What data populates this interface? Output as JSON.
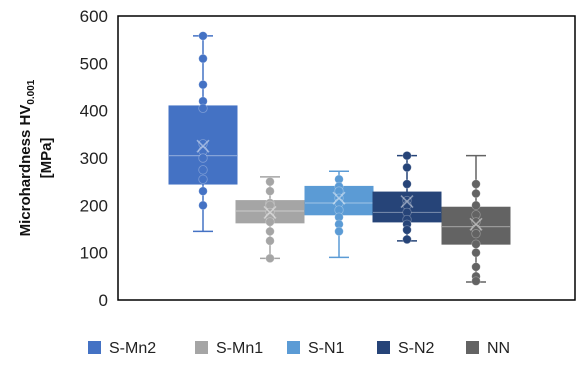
{
  "chart_data": {
    "type": "box",
    "title": "",
    "xlabel": "",
    "ylabel": {
      "line1_main": "Microhardness HV",
      "line1_sub": "0.001",
      "line2": "[MPa]"
    },
    "ylim": [
      0,
      600
    ],
    "yticks": [
      0,
      100,
      200,
      300,
      400,
      500,
      600
    ],
    "grid": false,
    "legend_position": "bottom",
    "series": [
      {
        "name": "S-Mn2",
        "color": "#4472C4",
        "min": 145,
        "q1": 245,
        "median": 305,
        "q3": 410,
        "max": 558,
        "mean": 325,
        "points": [
          558,
          510,
          455,
          420,
          405,
          330,
          315,
          300,
          275,
          255,
          230,
          200
        ]
      },
      {
        "name": "S-Mn1",
        "color": "#A5A5A5",
        "min": 88,
        "q1": 163,
        "median": 188,
        "q3": 210,
        "max": 260,
        "mean": 185,
        "points": [
          250,
          230,
          205,
          200,
          185,
          175,
          165,
          145,
          125,
          88
        ]
      },
      {
        "name": "S-N1",
        "color": "#5B9BD5",
        "min": 90,
        "q1": 180,
        "median": 205,
        "q3": 240,
        "max": 272,
        "mean": 215,
        "points": [
          255,
          240,
          230,
          215,
          205,
          190,
          175,
          160,
          145
        ]
      },
      {
        "name": "S-N2",
        "color": "#264478",
        "min": 125,
        "q1": 165,
        "median": 185,
        "q3": 228,
        "max": 305,
        "mean": 208,
        "points": [
          305,
          280,
          245,
          210,
          200,
          185,
          170,
          160,
          148,
          128
        ]
      },
      {
        "name": "NN",
        "color": "#636363",
        "min": 38,
        "q1": 118,
        "median": 155,
        "q3": 196,
        "max": 305,
        "mean": 160,
        "points": [
          245,
          225,
          200,
          180,
          165,
          150,
          140,
          118,
          100,
          70,
          50,
          40
        ]
      }
    ]
  }
}
